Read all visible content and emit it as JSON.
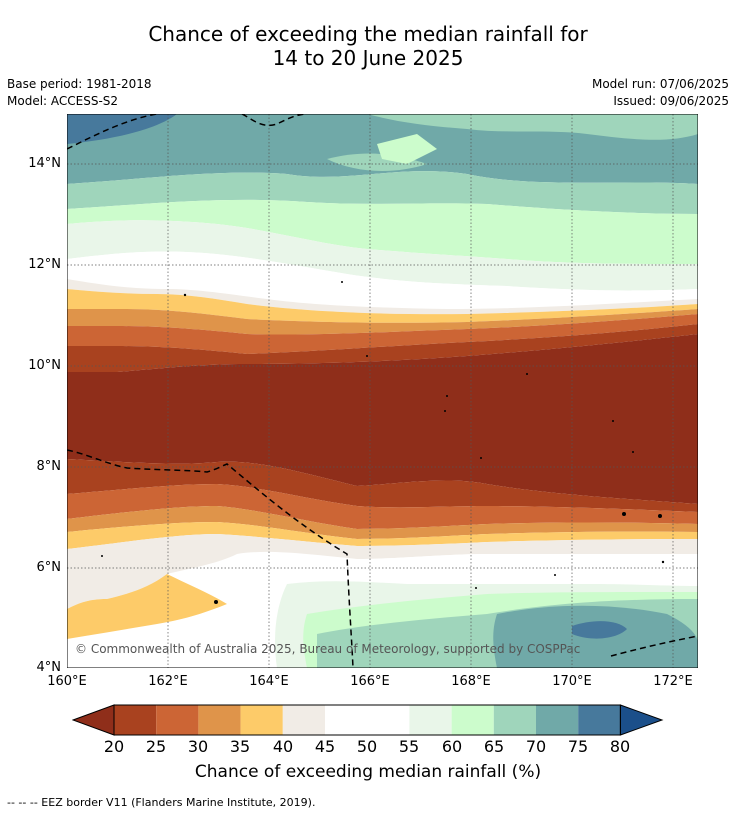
{
  "title": {
    "line1": "Chance of exceeding the median rainfall for",
    "line2": "14 to 20 June 2025"
  },
  "meta": {
    "base_period": "Base period: 1981-2018",
    "model": "Model: ACCESS-S2",
    "model_run": "Model run: 07/06/2025",
    "issued": "Issued: 09/06/2025"
  },
  "map": {
    "copyright": "© Commonwealth of Australia 2025, Bureau of Meteorology, supported by COSPPac",
    "lat_labels": [
      "14°N",
      "12°N",
      "10°N",
      "8°N",
      "6°N",
      "4°N"
    ],
    "lon_labels": [
      "160°E",
      "162°E",
      "164°E",
      "166°E",
      "168°E",
      "170°E",
      "172°E"
    ]
  },
  "colorbar": {
    "title": "Chance of exceeding median rainfall (%)",
    "labels": [
      "20",
      "25",
      "30",
      "35",
      "40",
      "45",
      "50",
      "55",
      "60",
      "65",
      "70",
      "75",
      "80"
    ],
    "colors": [
      "#8f2e1a",
      "#a9421f",
      "#cc6535",
      "#df944a",
      "#fdcb69",
      "#f1ece6",
      "#ffffff",
      "#ffffff",
      "#e9f6e9",
      "#ccfccc",
      "#9fd5bb",
      "#70a9a8",
      "#47799c",
      "#1b4f8a"
    ]
  },
  "legend_note": "--  --  -- EEZ border V11 (Flanders Marine Institute, 2019)."
}
